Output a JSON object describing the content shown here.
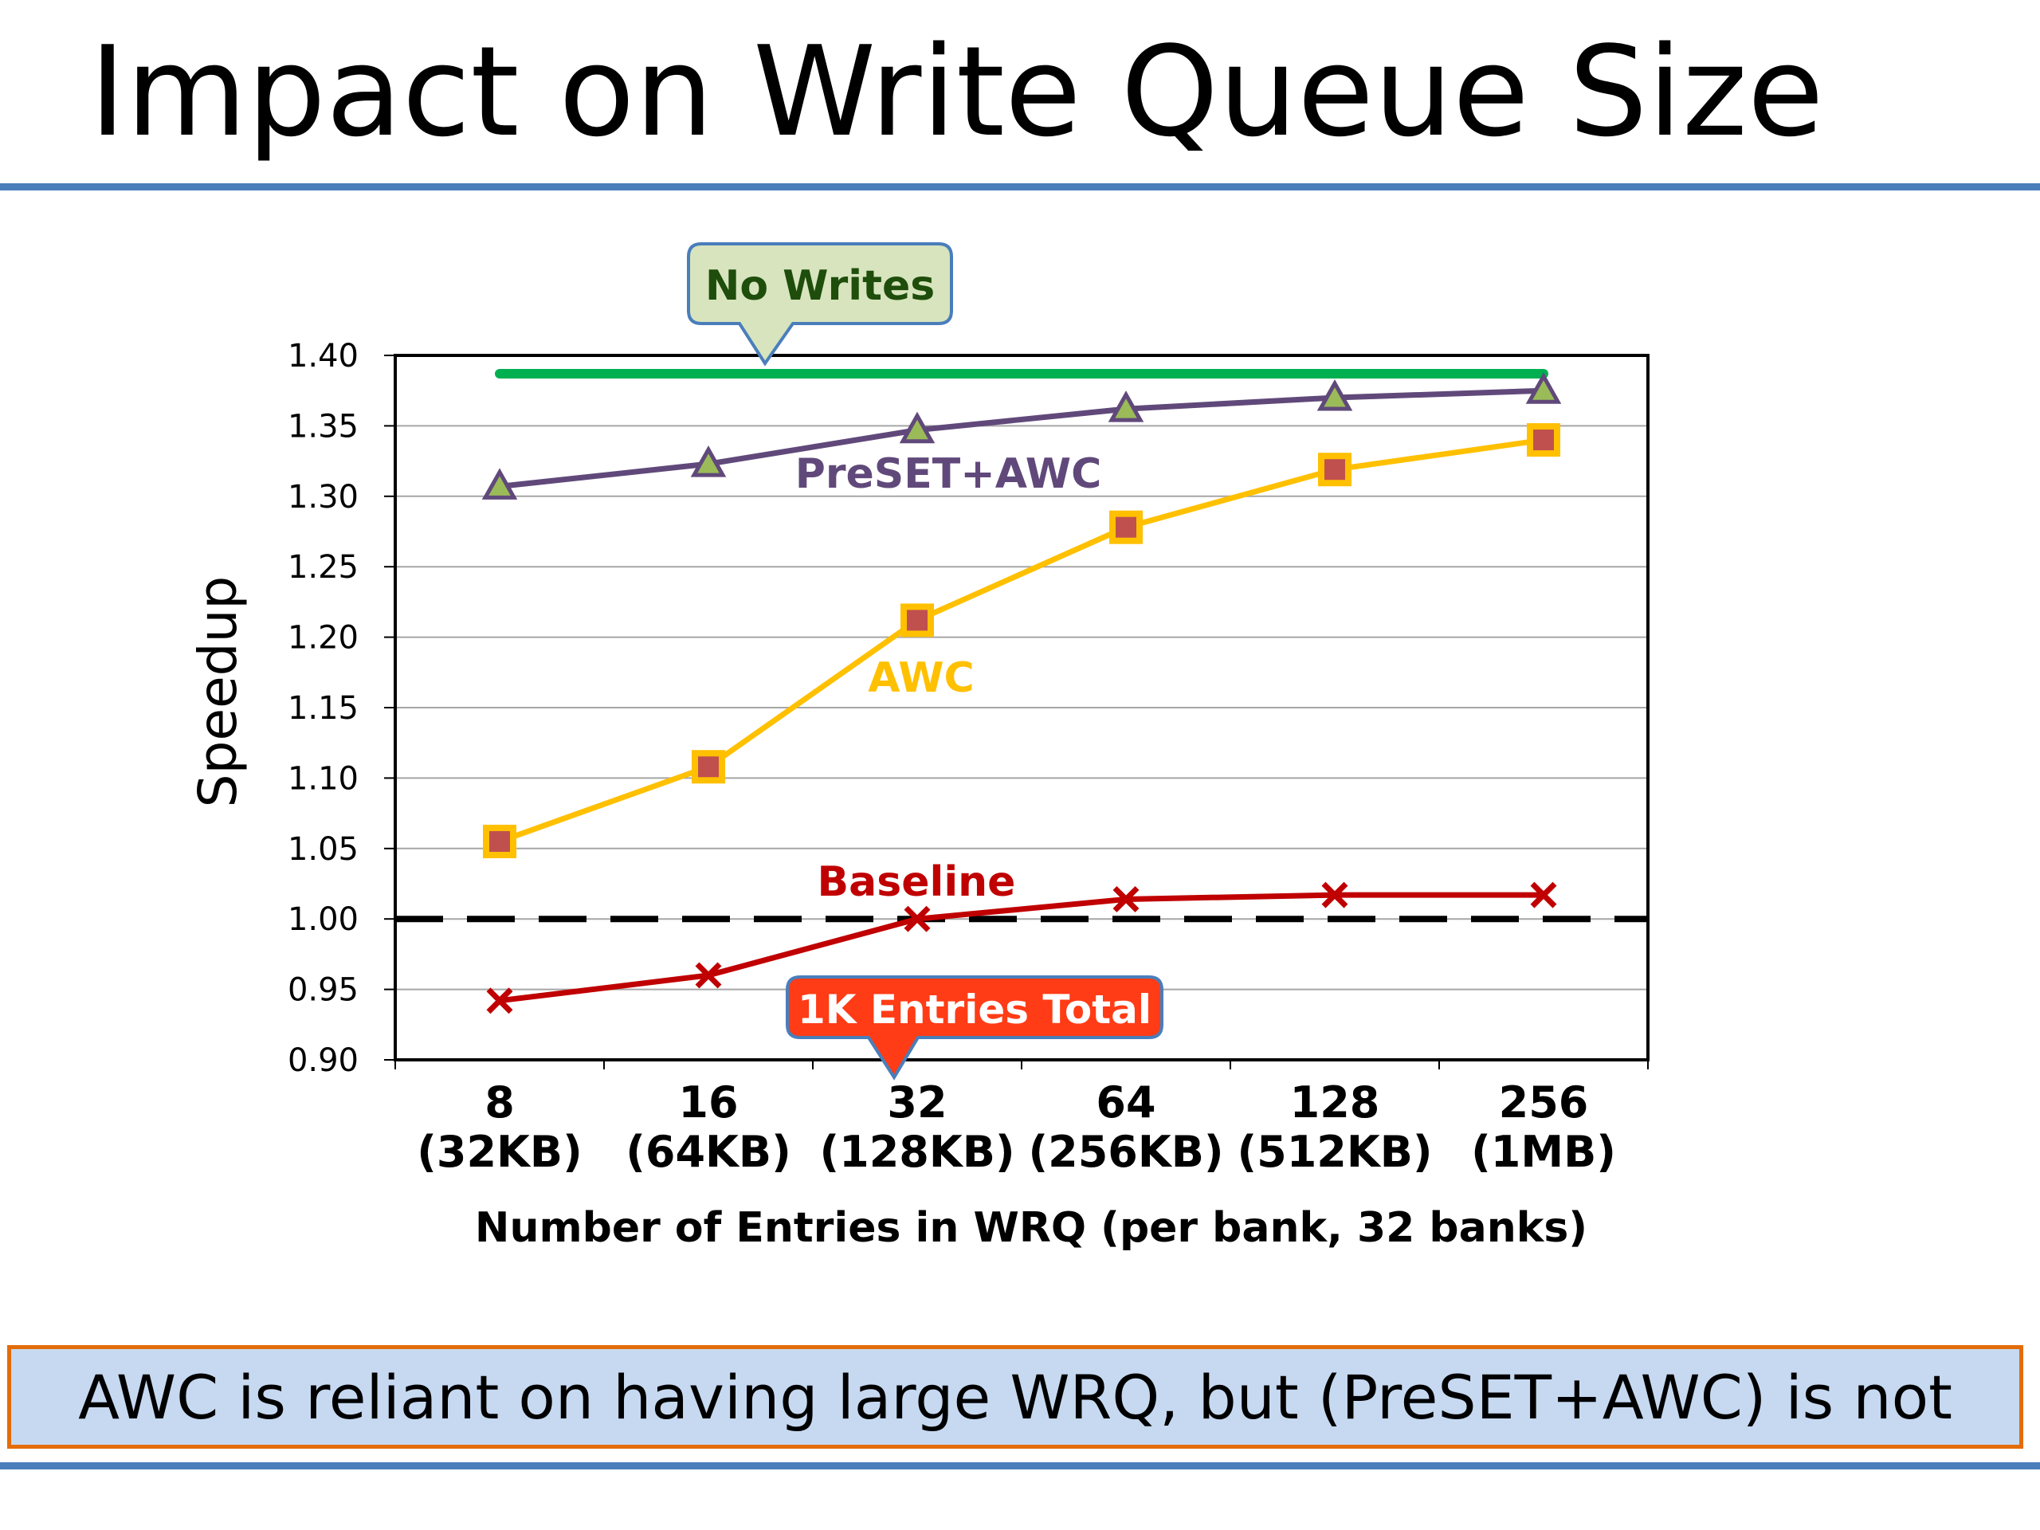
{
  "slide": {
    "title": "Impact on Write Queue Size",
    "takeaway": "AWC is reliant on having large WRQ, but (PreSET+AWC) is not"
  },
  "colors": {
    "rule": "#4a7ebb",
    "no_writes": "#00b050",
    "preset_awc": "#60497a",
    "preset_awc_marker_fill": "#9bbb59",
    "awc": "#ffc000",
    "awc_marker_fill": "#c0504d",
    "baseline": "#c00000",
    "callout_green_fill": "#d7e4bd",
    "callout_green_stroke": "#4a7ebb",
    "callout_green_text": "#1e4d0c",
    "callout_red_fill": "#ff3c16",
    "callout_red_stroke": "#4a7ebb",
    "takeaway_fill": "#c6d9f1",
    "takeaway_border": "#e36c0a"
  },
  "chart_data": {
    "type": "line",
    "title": "",
    "xlabel": "Number of Entries in WRQ (per bank, 32 banks)",
    "ylabel": "Speedup",
    "ylim": [
      0.9,
      1.4
    ],
    "ytick_step": 0.05,
    "grid": true,
    "categories": [
      {
        "entries": "8",
        "size": "(32KB)"
      },
      {
        "entries": "16",
        "size": "(64KB)"
      },
      {
        "entries": "32",
        "size": "(128KB)"
      },
      {
        "entries": "64",
        "size": "(256KB)"
      },
      {
        "entries": "128",
        "size": "(512KB)"
      },
      {
        "entries": "256",
        "size": "(1MB)"
      }
    ],
    "series": [
      {
        "name": "PreSET+AWC",
        "marker": "triangle",
        "values": [
          1.307,
          1.323,
          1.347,
          1.362,
          1.37,
          1.375
        ]
      },
      {
        "name": "AWC",
        "marker": "square",
        "values": [
          1.055,
          1.108,
          1.212,
          1.278,
          1.319,
          1.34
        ]
      },
      {
        "name": "Baseline",
        "marker": "x",
        "values": [
          0.942,
          0.96,
          1.0,
          1.014,
          1.017,
          1.017
        ]
      }
    ],
    "reference_lines": [
      {
        "name": "No Writes",
        "value": 1.387,
        "style": "solid"
      },
      {
        "name": "",
        "value": 1.0,
        "style": "dashed"
      }
    ],
    "callouts": {
      "top": "No Writes",
      "bottom": "1K Entries Total",
      "bottom_points_to_category": "32"
    }
  }
}
